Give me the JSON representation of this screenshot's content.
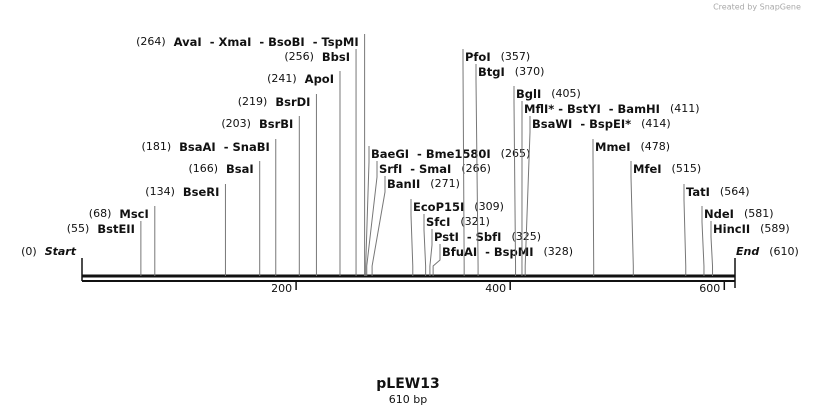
{
  "credit": "Created by SnapGene",
  "map": {
    "name": "pLEW13",
    "length": {
      "value": 610,
      "label": "610 bp"
    },
    "ticks": [
      200,
      400,
      600
    ],
    "start": {
      "label": "Start",
      "position": {
        "value": 0,
        "label": "(0)"
      }
    },
    "end": {
      "label": "End",
      "position": {
        "value": 610,
        "label": "(610)"
      }
    },
    "enzymes": [
      {
        "name": "BstEII",
        "position": {
          "value": 55,
          "label": "(55)"
        }
      },
      {
        "name": "MscI",
        "position": {
          "value": 68,
          "label": "(68)"
        }
      },
      {
        "name": "BseRI",
        "position": {
          "value": 134,
          "label": "(134)"
        }
      },
      {
        "name": "BsaI",
        "position": {
          "value": 166,
          "label": "(166)"
        }
      },
      {
        "name": "BsaAI  - SnaBI",
        "position": {
          "value": 181,
          "label": "(181)"
        }
      },
      {
        "name": "BsrBI",
        "position": {
          "value": 203,
          "label": "(203)"
        }
      },
      {
        "name": "BsrDI",
        "position": {
          "value": 219,
          "label": "(219)"
        }
      },
      {
        "name": "ApoI",
        "position": {
          "value": 241,
          "label": "(241)"
        }
      },
      {
        "name": "BbsI",
        "position": {
          "value": 256,
          "label": "(256)"
        }
      },
      {
        "name": "AvaI  - XmaI  - BsoBI  - TspMI",
        "position": {
          "value": 264,
          "label": "(264)"
        }
      },
      {
        "name": "BaeGI  - Bme1580I",
        "position": {
          "value": 265,
          "label": "(265)"
        }
      },
      {
        "name": "SrfI  - SmaI",
        "position": {
          "value": 266,
          "label": "(266)"
        }
      },
      {
        "name": "BanII",
        "position": {
          "value": 271,
          "label": "(271)"
        }
      },
      {
        "name": "EcoP15I",
        "position": {
          "value": 309,
          "label": "(309)"
        }
      },
      {
        "name": "SfcI",
        "position": {
          "value": 321,
          "label": "(321)"
        }
      },
      {
        "name": "PstI  - SbfI",
        "position": {
          "value": 325,
          "label": "(325)"
        }
      },
      {
        "name": "BfuAI  - BspMI",
        "position": {
          "value": 328,
          "label": "(328)"
        }
      },
      {
        "name": "PfoI",
        "position": {
          "value": 357,
          "label": "(357)"
        }
      },
      {
        "name": "BtgI",
        "position": {
          "value": 370,
          "label": "(370)"
        }
      },
      {
        "name": "BglI",
        "position": {
          "value": 405,
          "label": "(405)"
        }
      },
      {
        "name": "MflI* - BstYI  - BamHI",
        "position": {
          "value": 411,
          "label": "(411)"
        }
      },
      {
        "name": "BsaWI  - BspEI*",
        "position": {
          "value": 414,
          "label": "(414)"
        }
      },
      {
        "name": "MmeI",
        "position": {
          "value": 478,
          "label": "(478)"
        }
      },
      {
        "name": "MfeI",
        "position": {
          "value": 515,
          "label": "(515)"
        }
      },
      {
        "name": "TatI",
        "position": {
          "value": 564,
          "label": "(564)"
        }
      },
      {
        "name": "NdeI",
        "position": {
          "value": 581,
          "label": "(581)"
        }
      },
      {
        "name": "HincII",
        "position": {
          "value": 589,
          "label": "(589)"
        }
      }
    ]
  }
}
